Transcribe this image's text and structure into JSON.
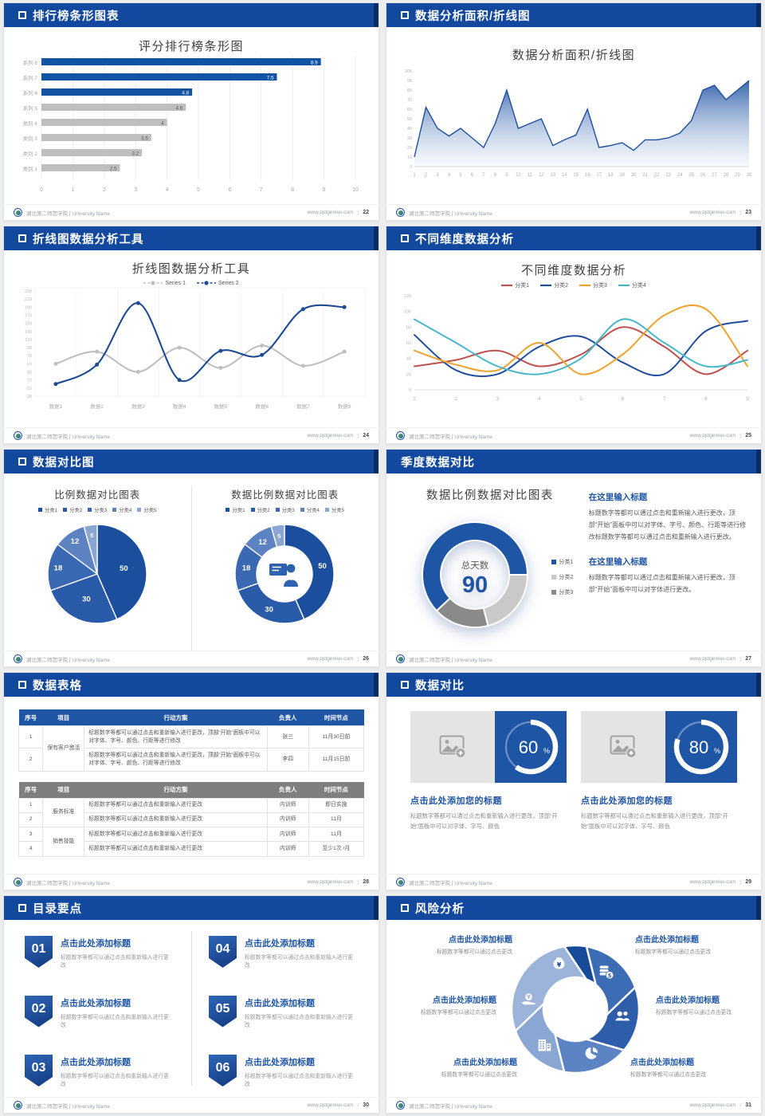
{
  "page": {
    "brand": "湖北第二师范学院 | University Name",
    "site": "www.pptgenius.com"
  },
  "slides": [
    {
      "header": "排行榜条形图表",
      "page": "22",
      "title": "评分排行榜条形图"
    },
    {
      "header": "数据分析面积/折线图",
      "page": "23",
      "title": "数据分析面积/折线图"
    },
    {
      "header": "折线图数据分析工具",
      "page": "24",
      "title": "折线图数据分析工具"
    },
    {
      "header": "不同维度数据分析",
      "page": "25",
      "title": "不同维度数据分析"
    },
    {
      "header": "数据对比图",
      "page": "26",
      "left_title": "比例数据对比图表",
      "right_title": "数据比例数据对比图表"
    },
    {
      "header": "季度数据对比",
      "page": "27",
      "title": "数据比例数据对比图表",
      "center_label": "总天数",
      "center_value": "90",
      "sections": [
        {
          "h": "在这里输入标题",
          "p": "标题数字等都可以通过点击和重新输入进行更改，顶部“开始”面板中可以对字体、字号、颜色、行距等进行修改标题数字等都可以通过点击和重新输入进行更改。"
        },
        {
          "h": "在这里输入标题",
          "p": "标题数字等都可以通过点击和重新输入进行更改，顶部“开始”面板中可以对字体进行更改。"
        }
      ]
    },
    {
      "header": "数据表格",
      "page": "28",
      "tables": [
        {
          "style": "blue",
          "headers": [
            "序号",
            "项目",
            "行动方案",
            "负责人",
            "时间节点"
          ],
          "rows": [
            {
              "no": "1",
              "item": "保有客户激活",
              "span": 2,
              "action": "标题数字等都可以通过点击和重新输入进行更改，顶部“开始”面板中可以对字体、字号、颜色、行距等进行修改",
              "owner": "张三",
              "time": "11月30日前"
            },
            {
              "no": "2",
              "action": "标题数字等都可以通过点击和重新输入进行更改，顶部“开始”面板中可以对字体、字号、颜色、行距等进行修改",
              "owner": "李四",
              "time": "11月15日前"
            }
          ]
        },
        {
          "style": "gray",
          "headers": [
            "序号",
            "项目",
            "行动方案",
            "负责人",
            "时间节点"
          ],
          "rows": [
            {
              "no": "1",
              "item": "服务标准",
              "span": 2,
              "action": "标题数字等都可以通过点击和重新输入进行更改",
              "owner": "内训师",
              "time": "即日实施"
            },
            {
              "no": "2",
              "action": "标题数字等都可以通过点击和重新输入进行更改",
              "owner": "内训师",
              "time": "11月"
            },
            {
              "no": "3",
              "item": "销售技能",
              "span": 2,
              "action": "标题数字等都可以通过点击和重新输入进行更改",
              "owner": "内训师",
              "time": "11月"
            },
            {
              "no": "4",
              "action": "标题数字等都可以通过点击和重新输入进行更改",
              "owner": "内训师",
              "time": "至少1次 /月"
            }
          ]
        }
      ]
    },
    {
      "header": "数据对比",
      "page": "29",
      "cards": [
        {
          "pct": 60,
          "h": "点击此处添加您的标题",
          "p": "标题数字等都可以通过点击和重新输入进行更改，顶部“开始”面板中可以对字体、字号、颜色"
        },
        {
          "pct": 80,
          "h": "点击此处添加您的标题",
          "p": "标题数字等都可以通过点击和重新输入进行更改，顶部“开始”面板中可以对字体、字号、颜色"
        }
      ]
    },
    {
      "header": "目录要点",
      "page": "30",
      "items": [
        {
          "num": "01",
          "h": "点击此处添加标题",
          "p": "标题数字等都可以通过点击和重新输入进行更改"
        },
        {
          "num": "02",
          "h": "点击此处添加标题",
          "p": "标题数字等都可以通过点击和重新输入进行更改"
        },
        {
          "num": "03",
          "h": "点击此处添加标题",
          "p": "标题数字等都可以通过点击和重新输入进行更改"
        },
        {
          "num": "04",
          "h": "点击此处添加标题",
          "p": "标题数字等都可以通过点击和重新输入进行更改"
        },
        {
          "num": "05",
          "h": "点击此处添加标题",
          "p": "标题数字等都可以通过点击和重新输入进行更改"
        },
        {
          "num": "06",
          "h": "点击此处添加标题",
          "p": "标题数字等都可以通过点击和重新输入进行更改"
        }
      ]
    },
    {
      "header": "风险分析",
      "page": "31",
      "labels": [
        {
          "h": "点击此处添加标题",
          "p": "标题数字等都可以通过点击更改"
        },
        {
          "h": "点击此处添加标题",
          "p": "标题数字等都可以通过点击更改"
        },
        {
          "h": "点击此处添加标题",
          "p": "标题数字等都可以通过点击更改"
        },
        {
          "h": "点击此处添加标题",
          "p": "标题数字等都可以通过点击更改"
        },
        {
          "h": "点击此处添加标题",
          "p": "标题数字等都可以通过点击更改"
        },
        {
          "h": "点击此处添加标题",
          "p": "标题数字等都可以通过点击更改"
        }
      ],
      "icons": [
        "money-bag",
        "coins",
        "people",
        "pie-chart",
        "building",
        "hand-coin"
      ]
    }
  ],
  "chart_data": [
    {
      "id": "ranking_bar",
      "type": "bar",
      "orientation": "horizontal",
      "title": "评分排行榜条形图",
      "categories": [
        "系列 8",
        "系列 7",
        "系列 6",
        "系列 5",
        "类别 4",
        "类别 3",
        "类别 2",
        "类别 1"
      ],
      "values": [
        8.9,
        7.5,
        4.8,
        4.6,
        4,
        3.5,
        3.2,
        2.5
      ],
      "bar_colors": [
        "#1253a4",
        "#1253a4",
        "#1253a4",
        "#bfbfbf",
        "#bfbfbf",
        "#bfbfbf",
        "#bfbfbf",
        "#bfbfbf"
      ],
      "xlim": [
        0,
        10
      ],
      "xtick_step": 1
    },
    {
      "id": "area_line",
      "type": "area",
      "title": "数据分析面积/折线图",
      "x": [
        1,
        2,
        3,
        4,
        5,
        6,
        7,
        8,
        9,
        10,
        11,
        12,
        13,
        14,
        15,
        16,
        17,
        18,
        19,
        20,
        21,
        22,
        23,
        24,
        25,
        26,
        27,
        28,
        29,
        30
      ],
      "values": [
        10,
        62,
        40,
        32,
        40,
        30,
        20,
        45,
        80,
        40,
        45,
        50,
        22,
        28,
        33,
        60,
        20,
        22,
        25,
        17,
        28,
        28,
        30,
        35,
        48,
        80,
        85,
        70,
        80,
        90
      ],
      "ylim": [
        0,
        100
      ],
      "ytick_step": 10,
      "line_color": "#1e4f9e"
    },
    {
      "id": "two_line",
      "type": "line",
      "title": "折线图数据分析工具",
      "categories": [
        "数据1",
        "数据2",
        "数据3",
        "数据4",
        "数据5",
        "数据6",
        "数据7",
        "数据8"
      ],
      "series": [
        {
          "name": "Series 1",
          "color": "#bfbfbf",
          "values": [
            50,
            80,
            30,
            90,
            40,
            95,
            45,
            80
          ]
        },
        {
          "name": "Series 2",
          "color": "#1c4b94",
          "values": [
            0,
            48,
            200,
            10,
            82,
            72,
            185,
            190
          ]
        }
      ],
      "ylim": [
        -30,
        230
      ],
      "ytick_step": 20,
      "legend_position": "top"
    },
    {
      "id": "multi_line",
      "type": "line",
      "title": "不同维度数据分析",
      "x": [
        1,
        2,
        3,
        4,
        5,
        6,
        7,
        8,
        9
      ],
      "series": [
        {
          "name": "分类1",
          "color": "#c0504d",
          "values": [
            30,
            38,
            50,
            30,
            45,
            80,
            55,
            20,
            50
          ]
        },
        {
          "name": "分类2",
          "color": "#1f4e9c",
          "values": [
            70,
            25,
            20,
            55,
            68,
            35,
            20,
            75,
            88
          ]
        },
        {
          "name": "分类3",
          "color": "#f0a22e",
          "values": [
            50,
            32,
            25,
            60,
            20,
            45,
            95,
            103,
            30
          ]
        },
        {
          "name": "分类4",
          "color": "#45b8cb",
          "values": [
            90,
            60,
            30,
            20,
            40,
            90,
            60,
            30,
            38
          ]
        }
      ],
      "ylim": [
        0,
        120
      ],
      "ytick_step": 20,
      "legend_position": "top"
    },
    {
      "id": "pie",
      "type": "pie",
      "title": "比例数据对比图表",
      "labels": [
        "分类1",
        "分类2",
        "分类3",
        "分类4",
        "分类5"
      ],
      "values": [
        50,
        30,
        18,
        12,
        5
      ],
      "colors": [
        "#1b4f9e",
        "#2a5ba8",
        "#3a68b2",
        "#5c82c2",
        "#8ca6d4"
      ]
    },
    {
      "id": "donut",
      "type": "pie",
      "donut": true,
      "title": "数据比例数据对比图表",
      "labels": [
        "分类1",
        "分类2",
        "分类3",
        "分类4",
        "分类5"
      ],
      "values": [
        50,
        30,
        18,
        12,
        5
      ],
      "colors": [
        "#1b4f9e",
        "#2a5ba8",
        "#3a68b2",
        "#5c82c2",
        "#8ca6d4"
      ]
    },
    {
      "id": "quarter_donut",
      "type": "pie",
      "donut": true,
      "title": "数据比例数据对比图表",
      "labels": [
        "分类1",
        "分类2",
        "分类3"
      ],
      "values": [
        62,
        21,
        17
      ],
      "colors": [
        "#1f55a5",
        "#c9c9c9",
        "#8a8a8a"
      ],
      "center_label": "总天数",
      "center_value": "90"
    },
    {
      "id": "progress_rings",
      "type": "progress",
      "values": [
        60,
        80
      ],
      "unit": "%"
    }
  ]
}
